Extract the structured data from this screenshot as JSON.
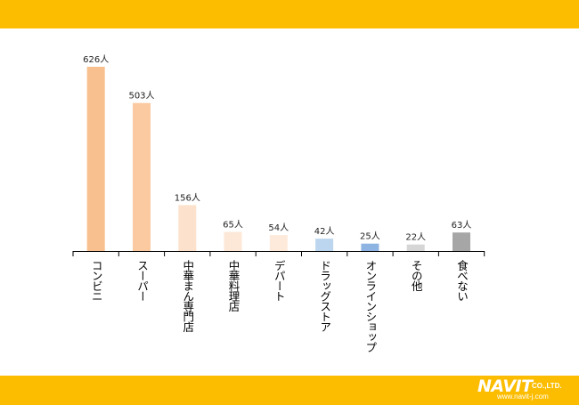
{
  "chart_data": {
    "type": "bar",
    "categories": [
      "コンビニ",
      "スーパー",
      "中華まん専門店",
      "中華料理店",
      "デパート",
      "ドラッグストア",
      "オンラインショップ",
      "その他",
      "食べない"
    ],
    "values": [
      626,
      503,
      156,
      65,
      54,
      42,
      25,
      22,
      63
    ],
    "value_labels": [
      "626人",
      "503人",
      "156人",
      "65人",
      "54人",
      "42人",
      "25人",
      "22人",
      "63人"
    ],
    "colors": [
      "#f9c08f",
      "#fbcaa1",
      "#fce1cc",
      "#fde7d7",
      "#fdeadb",
      "#bcd6ef",
      "#8db4e2",
      "#d6d6d6",
      "#a6a6a6"
    ],
    "ylim": [
      0,
      700
    ],
    "grid": false,
    "legend": "none"
  },
  "footer": {
    "logo_text": "NAVIT",
    "logo_company": "CO.,LTD.",
    "logo_url": "www.navit-j.com"
  },
  "colors": {
    "band": "#fcbd00"
  }
}
